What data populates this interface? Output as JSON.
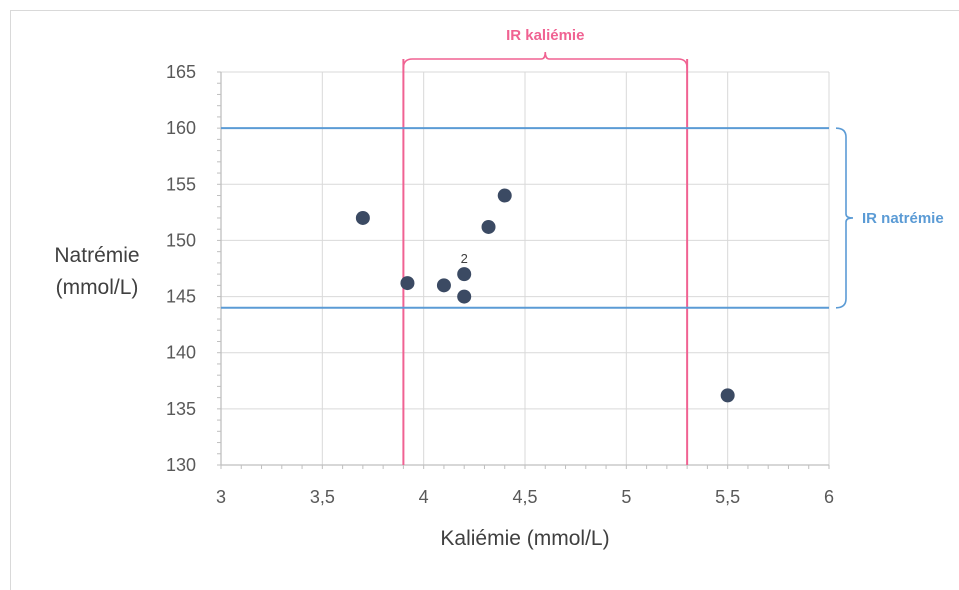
{
  "chart_data": {
    "type": "scatter",
    "xlabel": "Kaliémie (mmol/L)",
    "ylabel_lines": [
      "Natrémie",
      "(mmol/L)"
    ],
    "xlim": [
      3,
      6
    ],
    "ylim": [
      130,
      165
    ],
    "x_ticks": [
      3,
      3.5,
      4,
      4.5,
      5,
      5.5,
      6
    ],
    "x_tick_labels": [
      "3",
      "3,5",
      "4",
      "4,5",
      "5",
      "5,5",
      "6"
    ],
    "y_ticks": [
      130,
      135,
      140,
      145,
      150,
      155,
      160,
      165
    ],
    "y_tick_labels": [
      "130",
      "135",
      "140",
      "145",
      "150",
      "155",
      "160",
      "165"
    ],
    "grid": true,
    "points": [
      {
        "x": 3.7,
        "y": 152
      },
      {
        "x": 3.92,
        "y": 146.2
      },
      {
        "x": 4.1,
        "y": 146
      },
      {
        "x": 4.2,
        "y": 147,
        "label": "2"
      },
      {
        "x": 4.2,
        "y": 145
      },
      {
        "x": 4.32,
        "y": 151.2
      },
      {
        "x": 4.4,
        "y": 154
      },
      {
        "x": 5.5,
        "y": 136.2
      }
    ],
    "reference_ranges": {
      "kaliemie": {
        "label": "IR kaliémie",
        "min": 3.9,
        "max": 5.3,
        "color": "#f06292"
      },
      "natremie": {
        "label": "IR natrémie",
        "min": 144,
        "max": 160,
        "color": "#5b9bd5"
      }
    },
    "colors": {
      "point": "#3b4a63",
      "grid": "#d9d9d9",
      "axis": "#bfbfbf"
    }
  }
}
